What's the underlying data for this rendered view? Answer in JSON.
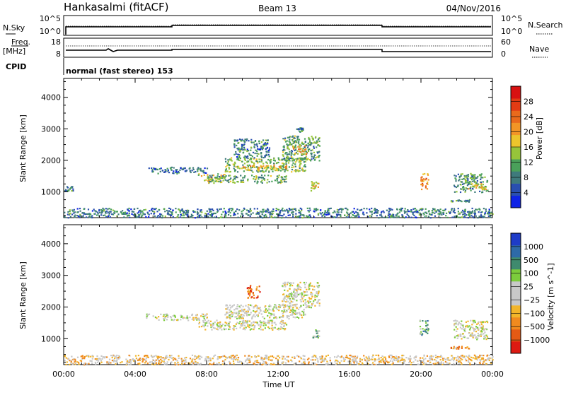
{
  "header": {
    "station": "Hankasalmi (fitACF)",
    "beam": "Beam 13",
    "date": "04/Nov/2016"
  },
  "top_panels": {
    "nsky_label": "N.Sky",
    "nsky_ticks": [
      "10^5",
      "10^0"
    ],
    "nsearch_label": "N.Search",
    "nsearch_ticks": [
      "10^5",
      "10^0"
    ],
    "freq_label_1": "Freq.",
    "freq_label_2": "[MHz]",
    "freq_ticks": [
      "18",
      "8"
    ],
    "nave_label": "Nave",
    "nave_ticks": [
      "60",
      "0"
    ],
    "cpid_label": "CPID",
    "cpid_text": "normal (fast stereo) 153"
  },
  "chart_data": [
    {
      "type": "heatmap",
      "name": "power",
      "ylabel": "Slant Range [km]",
      "xlabel": "",
      "xlim": [
        0,
        24
      ],
      "ylim": [
        180,
        4600
      ],
      "y_ticks": [
        "1000",
        "2000",
        "3000",
        "4000"
      ],
      "colorbar_label": "Power [dB]",
      "colorbar_ticks": [
        "4",
        "8",
        "12",
        "16",
        "20",
        "24",
        "28"
      ],
      "colorbar_colors": [
        "#0f23e6",
        "#2a4fb0",
        "#3f7a7c",
        "#4aa05a",
        "#96c43a",
        "#ecc52c",
        "#f29526",
        "#e96a1c",
        "#e23b14",
        "#d81111"
      ],
      "regions": [
        {
          "t0": 0.0,
          "t1": 24.0,
          "r0": 200,
          "r1": 500,
          "level": 0.25
        },
        {
          "t0": 0.0,
          "t1": 0.5,
          "r0": 1050,
          "r1": 1200,
          "level": 0.3
        },
        {
          "t0": 4.6,
          "t1": 8.0,
          "r0": 1600,
          "r1": 1800,
          "level": 0.2
        },
        {
          "t0": 7.5,
          "t1": 9.0,
          "r0": 1350,
          "r1": 1600,
          "level": 0.5
        },
        {
          "t0": 8.0,
          "t1": 12.5,
          "r0": 1300,
          "r1": 1550,
          "level": 0.35
        },
        {
          "t0": 9.0,
          "t1": 13.5,
          "r0": 1650,
          "r1": 2100,
          "level": 0.4
        },
        {
          "t0": 10.0,
          "t1": 12.5,
          "r0": 1700,
          "r1": 1850,
          "level": 0.6
        },
        {
          "t0": 9.5,
          "t1": 11.5,
          "r0": 2100,
          "r1": 2700,
          "level": 0.25
        },
        {
          "t0": 12.2,
          "t1": 14.3,
          "r0": 2000,
          "r1": 2800,
          "level": 0.35
        },
        {
          "t0": 12.8,
          "t1": 13.6,
          "r0": 2200,
          "r1": 2500,
          "level": 0.6
        },
        {
          "t0": 13.0,
          "t1": 13.4,
          "r0": 2900,
          "r1": 3050,
          "level": 0.25
        },
        {
          "t0": 13.8,
          "t1": 14.3,
          "r0": 1050,
          "r1": 1350,
          "level": 0.55
        },
        {
          "t0": 19.9,
          "t1": 20.4,
          "r0": 1100,
          "r1": 1600,
          "level": 0.7
        },
        {
          "t0": 21.6,
          "t1": 22.7,
          "r0": 700,
          "r1": 780,
          "level": 0.3
        },
        {
          "t0": 21.8,
          "t1": 23.7,
          "r0": 1000,
          "r1": 1600,
          "level": 0.3
        },
        {
          "t0": 22.6,
          "t1": 23.6,
          "r0": 1100,
          "r1": 1300,
          "level": 0.5
        }
      ]
    },
    {
      "type": "heatmap",
      "name": "velocity",
      "ylabel": "Slant Range [km]",
      "xlabel": "Time UT",
      "xlim": [
        0,
        24
      ],
      "ylim": [
        180,
        4600
      ],
      "x_ticks": [
        "00:00",
        "04:00",
        "08:00",
        "12:00",
        "16:00",
        "20:00",
        "00:00"
      ],
      "y_ticks": [
        "1000",
        "2000",
        "3000",
        "4000"
      ],
      "colorbar_label": "Velocity [m s^-1]",
      "colorbar_ticks": [
        "1000",
        "500",
        "100",
        "25",
        "−25",
        "−100",
        "−500",
        "−1000"
      ],
      "colorbar_colors": [
        "#1e3cc8",
        "#2e6aa8",
        "#3f8a6e",
        "#7ccc3c",
        "#c8c8c8",
        "#c8c8c8",
        "#f2b52a",
        "#f08a1e",
        "#e45a14",
        "#dd1a12"
      ],
      "regions": [
        {
          "t0": 0.0,
          "t1": 24.0,
          "r0": 200,
          "r1": 500,
          "level": 0.6
        },
        {
          "t0": 4.6,
          "t1": 8.0,
          "r0": 1600,
          "r1": 1800,
          "level": 0.5
        },
        {
          "t0": 7.5,
          "t1": 12.5,
          "r0": 1300,
          "r1": 1600,
          "level": 0.5
        },
        {
          "t0": 9.0,
          "t1": 13.5,
          "r0": 1650,
          "r1": 2100,
          "level": 0.5
        },
        {
          "t0": 10.2,
          "t1": 11.0,
          "r0": 2300,
          "r1": 2700,
          "level": 0.8
        },
        {
          "t0": 12.2,
          "t1": 14.3,
          "r0": 2000,
          "r1": 2800,
          "level": 0.5
        },
        {
          "t0": 13.9,
          "t1": 14.3,
          "r0": 1050,
          "r1": 1300,
          "level": 0.35
        },
        {
          "t0": 19.9,
          "t1": 20.4,
          "r0": 1100,
          "r1": 1600,
          "level": 0.3
        },
        {
          "t0": 21.6,
          "t1": 22.7,
          "r0": 700,
          "r1": 780,
          "level": 0.75
        },
        {
          "t0": 21.8,
          "t1": 23.7,
          "r0": 1000,
          "r1": 1600,
          "level": 0.5
        }
      ]
    }
  ]
}
